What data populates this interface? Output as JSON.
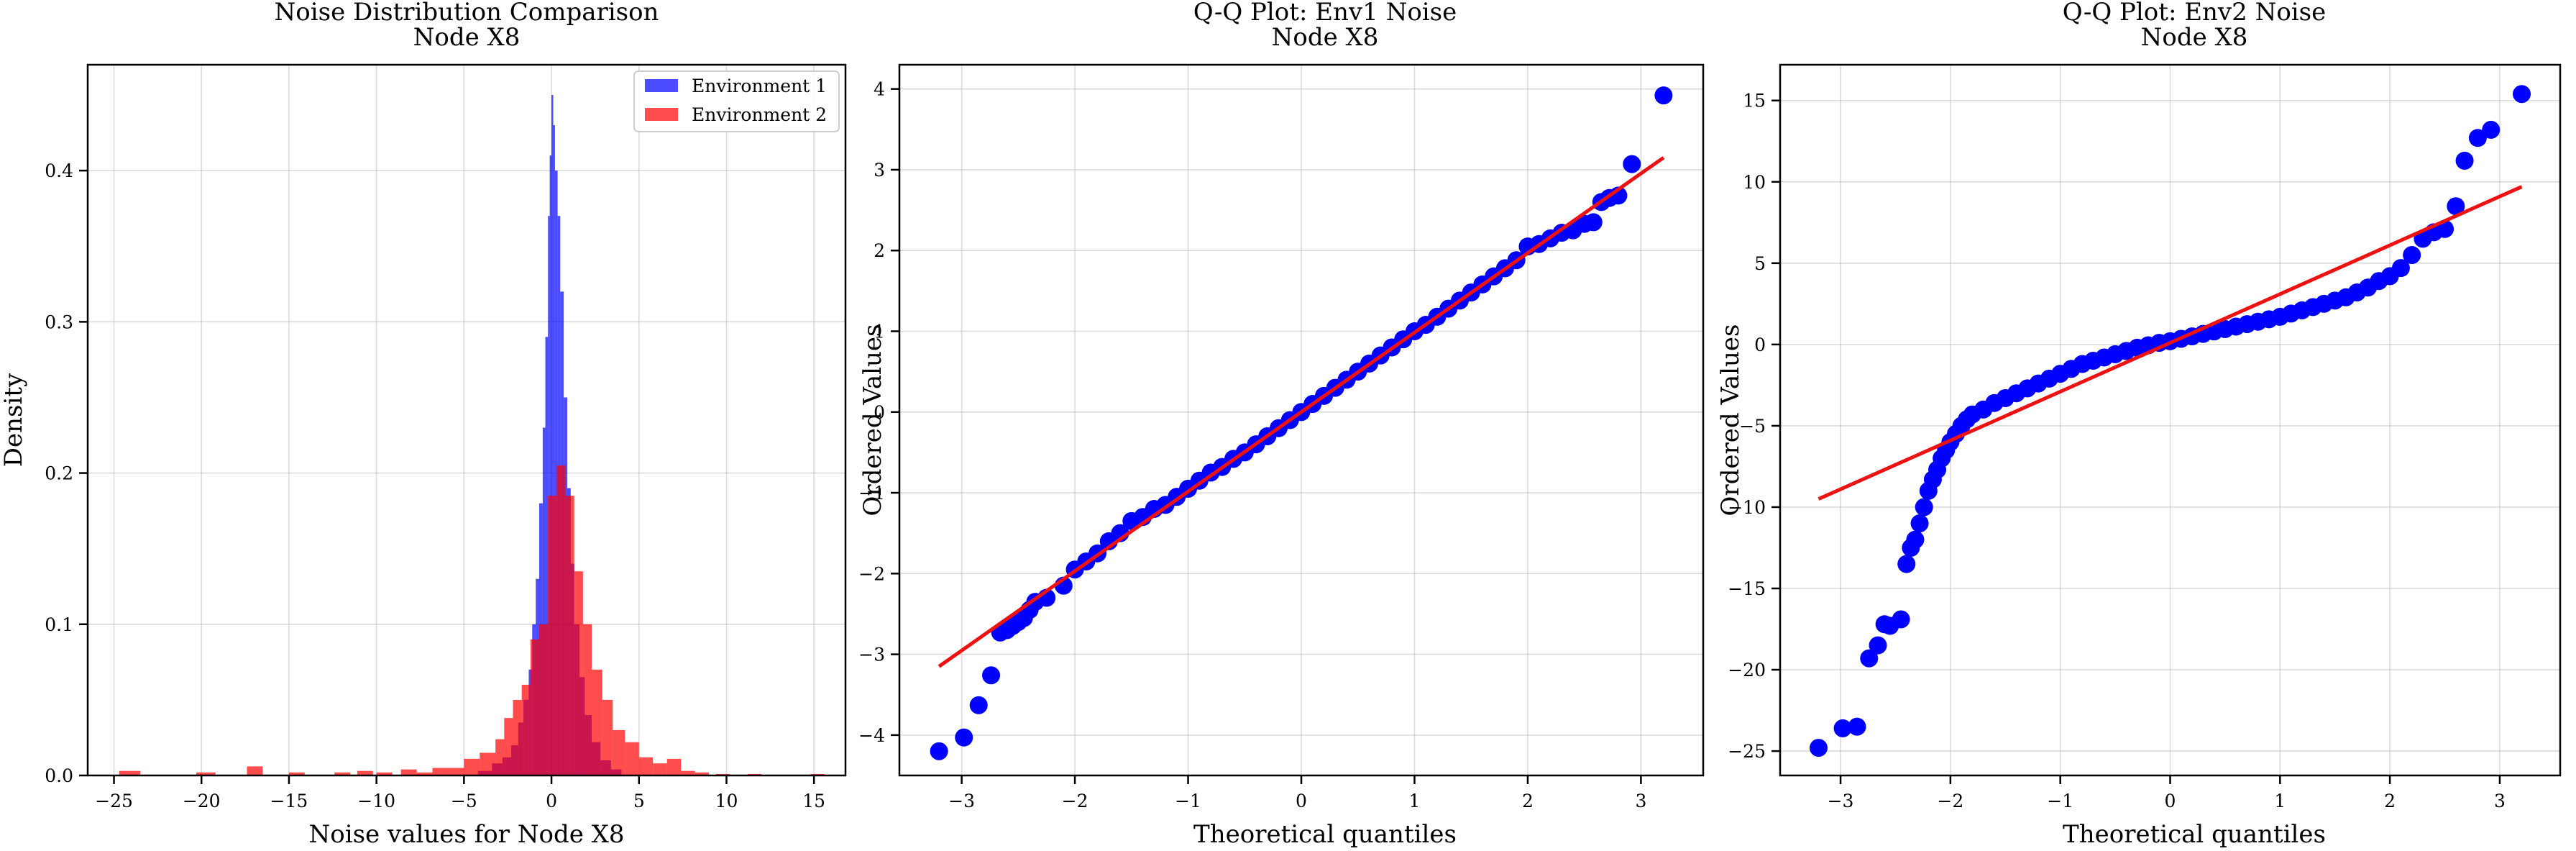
{
  "chart_data": [
    {
      "type": "histogram",
      "title": "Noise Distribution Comparison",
      "subtitle": "Node X8",
      "xlabel": "Noise values for Node X8",
      "ylabel": "Density",
      "xlim": [
        -26.5,
        16.8
      ],
      "ylim": [
        0,
        0.47
      ],
      "xticks": [
        -25,
        -20,
        -15,
        -10,
        -5,
        0,
        5,
        10,
        15
      ],
      "yticks": [
        0.0,
        0.1,
        0.2,
        0.3,
        0.4
      ],
      "grid": true,
      "legend_position": "top-right",
      "series": [
        {
          "name": "Environment 1",
          "color": "#0000ff",
          "opacity": 0.7,
          "bins": [
            [
              -4.2,
              -3.4,
              0.003
            ],
            [
              -3.4,
              -2.8,
              0.008
            ],
            [
              -2.8,
              -2.3,
              0.012
            ],
            [
              -2.3,
              -1.9,
              0.02
            ],
            [
              -1.9,
              -1.6,
              0.035
            ],
            [
              -1.6,
              -1.3,
              0.05
            ],
            [
              -1.3,
              -1.1,
              0.07
            ],
            [
              -1.1,
              -0.9,
              0.1
            ],
            [
              -0.9,
              -0.7,
              0.13
            ],
            [
              -0.7,
              -0.5,
              0.18
            ],
            [
              -0.5,
              -0.35,
              0.23
            ],
            [
              -0.35,
              -0.2,
              0.29
            ],
            [
              -0.2,
              -0.1,
              0.37
            ],
            [
              -0.1,
              0.0,
              0.41
            ],
            [
              0.0,
              0.1,
              0.45
            ],
            [
              0.1,
              0.2,
              0.43
            ],
            [
              0.2,
              0.35,
              0.4
            ],
            [
              0.35,
              0.5,
              0.37
            ],
            [
              0.5,
              0.7,
              0.32
            ],
            [
              0.7,
              0.9,
              0.25
            ],
            [
              0.9,
              1.1,
              0.19
            ],
            [
              1.1,
              1.3,
              0.14
            ],
            [
              1.3,
              1.6,
              0.1
            ],
            [
              1.6,
              1.9,
              0.065
            ],
            [
              1.9,
              2.3,
              0.04
            ],
            [
              2.3,
              2.8,
              0.022
            ],
            [
              2.8,
              3.4,
              0.01
            ],
            [
              3.4,
              4.0,
              0.004
            ]
          ]
        },
        {
          "name": "Environment 2",
          "color": "#ff0000",
          "opacity": 0.7,
          "bins": [
            [
              -24.7,
              -23.5,
              0.003
            ],
            [
              -20.3,
              -19.2,
              0.002
            ],
            [
              -17.4,
              -16.5,
              0.006
            ],
            [
              -15.0,
              -14.1,
              0.002
            ],
            [
              -12.4,
              -11.5,
              0.002
            ],
            [
              -11.1,
              -10.2,
              0.003
            ],
            [
              -10.0,
              -9.1,
              0.002
            ],
            [
              -8.6,
              -7.7,
              0.004
            ],
            [
              -7.7,
              -6.8,
              0.002
            ],
            [
              -6.8,
              -5.9,
              0.005
            ],
            [
              -5.9,
              -5.0,
              0.005
            ],
            [
              -5.0,
              -4.1,
              0.011
            ],
            [
              -4.1,
              -3.2,
              0.015
            ],
            [
              -3.2,
              -2.7,
              0.024
            ],
            [
              -2.7,
              -2.2,
              0.038
            ],
            [
              -2.2,
              -1.7,
              0.05
            ],
            [
              -1.7,
              -1.2,
              0.06
            ],
            [
              -1.2,
              -0.7,
              0.09
            ],
            [
              -0.7,
              -0.2,
              0.1
            ],
            [
              -0.2,
              0.3,
              0.185
            ],
            [
              0.3,
              0.8,
              0.205
            ],
            [
              0.8,
              1.3,
              0.185
            ],
            [
              1.3,
              1.8,
              0.135
            ],
            [
              1.8,
              2.3,
              0.1
            ],
            [
              2.3,
              2.9,
              0.07
            ],
            [
              2.9,
              3.5,
              0.05
            ],
            [
              3.5,
              4.2,
              0.03
            ],
            [
              4.2,
              5.0,
              0.022
            ],
            [
              5.0,
              5.8,
              0.012
            ],
            [
              5.8,
              6.6,
              0.008
            ],
            [
              6.6,
              7.4,
              0.011
            ],
            [
              7.4,
              8.2,
              0.003
            ],
            [
              8.2,
              9.0,
              0.002
            ],
            [
              9.4,
              10.2,
              0.001
            ],
            [
              11.2,
              12.0,
              0.001
            ],
            [
              14.8,
              15.6,
              0.001
            ]
          ]
        }
      ]
    },
    {
      "type": "scatter",
      "title": "Q-Q Plot: Env1 Noise",
      "subtitle": "Node X8",
      "xlabel": "Theoretical quantiles",
      "ylabel": "Ordered Values",
      "xlim": [
        -3.55,
        3.55
      ],
      "ylim": [
        -4.5,
        4.3
      ],
      "xticks": [
        -3,
        -2,
        -1,
        0,
        1,
        2,
        3
      ],
      "yticks": [
        -4,
        -3,
        -2,
        -1,
        0,
        1,
        2,
        3,
        4
      ],
      "grid": true,
      "marker_color": "#0000ff",
      "fit_line_color": "#ee1111",
      "fit_line": [
        [
          -3.2,
          -3.15
        ],
        [
          3.2,
          3.15
        ]
      ],
      "points": [
        [
          -3.2,
          -4.2
        ],
        [
          -2.98,
          -4.03
        ],
        [
          -2.85,
          -3.63
        ],
        [
          -2.74,
          -3.26
        ],
        [
          -2.66,
          -2.73
        ],
        [
          -2.6,
          -2.7
        ],
        [
          -2.55,
          -2.65
        ],
        [
          -2.5,
          -2.6
        ],
        [
          -2.45,
          -2.55
        ],
        [
          -2.4,
          -2.45
        ],
        [
          -2.35,
          -2.35
        ],
        [
          -2.25,
          -2.3
        ],
        [
          -2.1,
          -2.15
        ],
        [
          -2.0,
          -1.95
        ],
        [
          -1.9,
          -1.85
        ],
        [
          -1.8,
          -1.75
        ],
        [
          -1.7,
          -1.6
        ],
        [
          -1.6,
          -1.5
        ],
        [
          -1.5,
          -1.35
        ],
        [
          -1.4,
          -1.3
        ],
        [
          -1.3,
          -1.2
        ],
        [
          -1.2,
          -1.15
        ],
        [
          -1.1,
          -1.05
        ],
        [
          -1.0,
          -0.95
        ],
        [
          -0.9,
          -0.85
        ],
        [
          -0.8,
          -0.75
        ],
        [
          -0.7,
          -0.68
        ],
        [
          -0.6,
          -0.58
        ],
        [
          -0.5,
          -0.5
        ],
        [
          -0.4,
          -0.4
        ],
        [
          -0.3,
          -0.3
        ],
        [
          -0.2,
          -0.2
        ],
        [
          -0.1,
          -0.1
        ],
        [
          0.0,
          0.0
        ],
        [
          0.1,
          0.1
        ],
        [
          0.2,
          0.2
        ],
        [
          0.3,
          0.3
        ],
        [
          0.4,
          0.4
        ],
        [
          0.5,
          0.5
        ],
        [
          0.6,
          0.6
        ],
        [
          0.7,
          0.7
        ],
        [
          0.8,
          0.8
        ],
        [
          0.9,
          0.9
        ],
        [
          1.0,
          1.0
        ],
        [
          1.1,
          1.08
        ],
        [
          1.2,
          1.18
        ],
        [
          1.3,
          1.28
        ],
        [
          1.4,
          1.38
        ],
        [
          1.5,
          1.48
        ],
        [
          1.6,
          1.58
        ],
        [
          1.7,
          1.68
        ],
        [
          1.8,
          1.78
        ],
        [
          1.9,
          1.88
        ],
        [
          2.0,
          2.05
        ],
        [
          2.1,
          2.08
        ],
        [
          2.2,
          2.15
        ],
        [
          2.3,
          2.22
        ],
        [
          2.4,
          2.25
        ],
        [
          2.5,
          2.33
        ],
        [
          2.58,
          2.35
        ],
        [
          2.65,
          2.6
        ],
        [
          2.72,
          2.65
        ],
        [
          2.8,
          2.68
        ],
        [
          2.92,
          3.07
        ],
        [
          3.2,
          3.92
        ]
      ]
    },
    {
      "type": "scatter",
      "title": "Q-Q Plot: Env2 Noise",
      "subtitle": "Node X8",
      "xlabel": "Theoretical quantiles",
      "ylabel": "Ordered Values",
      "xlim": [
        -3.55,
        3.55
      ],
      "ylim": [
        -26.5,
        17.2
      ],
      "xticks": [
        -3,
        -2,
        -1,
        0,
        1,
        2,
        3
      ],
      "yticks": [
        -25,
        -20,
        -15,
        -10,
        -5,
        0,
        5,
        10,
        15
      ],
      "grid": true,
      "marker_color": "#0000ff",
      "fit_line_color": "#ee1111",
      "fit_line": [
        [
          -3.2,
          -9.5
        ],
        [
          3.2,
          9.7
        ]
      ],
      "points": [
        [
          -3.2,
          -24.8
        ],
        [
          -2.98,
          -23.6
        ],
        [
          -2.85,
          -23.5
        ],
        [
          -2.74,
          -19.3
        ],
        [
          -2.66,
          -18.5
        ],
        [
          -2.6,
          -17.2
        ],
        [
          -2.55,
          -17.3
        ],
        [
          -2.45,
          -16.9
        ],
        [
          -2.4,
          -13.5
        ],
        [
          -2.36,
          -12.5
        ],
        [
          -2.32,
          -12.0
        ],
        [
          -2.28,
          -11.0
        ],
        [
          -2.24,
          -10.0
        ],
        [
          -2.2,
          -9.0
        ],
        [
          -2.16,
          -8.3
        ],
        [
          -2.12,
          -7.7
        ],
        [
          -2.08,
          -7.0
        ],
        [
          -2.04,
          -6.5
        ],
        [
          -2.0,
          -6.0
        ],
        [
          -1.95,
          -5.5
        ],
        [
          -1.9,
          -5.0
        ],
        [
          -1.85,
          -4.6
        ],
        [
          -1.8,
          -4.3
        ],
        [
          -1.7,
          -4.0
        ],
        [
          -1.6,
          -3.6
        ],
        [
          -1.5,
          -3.3
        ],
        [
          -1.4,
          -3.0
        ],
        [
          -1.3,
          -2.7
        ],
        [
          -1.2,
          -2.4
        ],
        [
          -1.1,
          -2.1
        ],
        [
          -1.0,
          -1.8
        ],
        [
          -0.9,
          -1.5
        ],
        [
          -0.8,
          -1.2
        ],
        [
          -0.7,
          -1.0
        ],
        [
          -0.6,
          -0.8
        ],
        [
          -0.5,
          -0.6
        ],
        [
          -0.4,
          -0.4
        ],
        [
          -0.3,
          -0.2
        ],
        [
          -0.2,
          -0.05
        ],
        [
          -0.1,
          0.1
        ],
        [
          0.0,
          0.2
        ],
        [
          0.1,
          0.35
        ],
        [
          0.2,
          0.5
        ],
        [
          0.3,
          0.65
        ],
        [
          0.4,
          0.8
        ],
        [
          0.5,
          0.95
        ],
        [
          0.6,
          1.1
        ],
        [
          0.7,
          1.25
        ],
        [
          0.8,
          1.4
        ],
        [
          0.9,
          1.55
        ],
        [
          1.0,
          1.7
        ],
        [
          1.1,
          1.9
        ],
        [
          1.2,
          2.1
        ],
        [
          1.3,
          2.3
        ],
        [
          1.4,
          2.5
        ],
        [
          1.5,
          2.7
        ],
        [
          1.6,
          2.9
        ],
        [
          1.7,
          3.2
        ],
        [
          1.8,
          3.5
        ],
        [
          1.9,
          3.9
        ],
        [
          2.0,
          4.2
        ],
        [
          2.1,
          4.7
        ],
        [
          2.2,
          5.5
        ],
        [
          2.3,
          6.5
        ],
        [
          2.4,
          6.9
        ],
        [
          2.5,
          7.1
        ],
        [
          2.6,
          8.5
        ],
        [
          2.68,
          11.3
        ],
        [
          2.8,
          12.7
        ],
        [
          2.92,
          13.2
        ],
        [
          3.2,
          15.4
        ]
      ]
    }
  ]
}
